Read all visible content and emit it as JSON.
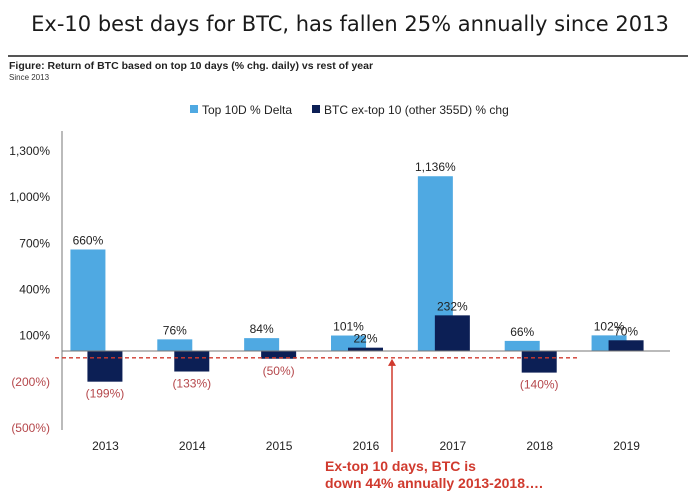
{
  "header": {
    "title": "Ex-10 best days for BTC, has fallen 25% annually since 2013",
    "figure_caption": "Figure: Return of BTC based on top 10 days (% chg. daily) vs rest of year",
    "subcaption": "Since 2013"
  },
  "chart_data": {
    "type": "bar",
    "categories": [
      "2013",
      "2014",
      "2015",
      "2016",
      "2017",
      "2018",
      "2019"
    ],
    "series": [
      {
        "name": "Top 10D % Delta",
        "color": "#4fa9e2",
        "values": [
          660,
          76,
          84,
          101,
          1136,
          66,
          102
        ],
        "labels": [
          "660%",
          "76%",
          "84%",
          "101%",
          "1,136%",
          "66%",
          "102%"
        ]
      },
      {
        "name": "BTC ex-top 10 (other 355D) % chg",
        "color": "#0c1f55",
        "values": [
          -199,
          -133,
          -50,
          22,
          232,
          -140,
          70
        ],
        "labels": [
          "(199%)",
          "(133%)",
          "(50%)",
          "22%",
          "232%",
          "(140%)",
          "70%"
        ]
      }
    ],
    "ylim": [
      -500,
      1300
    ],
    "yticks": [
      1300,
      1000,
      700,
      400,
      100,
      -200,
      -500
    ],
    "ytick_labels": [
      "1,300%",
      "1,000%",
      "700%",
      "400%",
      "100%",
      "(200%)",
      "(500%)"
    ],
    "negative_label_color": "#b5474b",
    "legend_position": "top-center",
    "reference_line": {
      "value": -44,
      "style": "dashed",
      "color": "#d03a2e"
    },
    "annotation": {
      "line1": "Ex-top 10 days, BTC is",
      "line2": "down 44% annually 2013-2018…."
    }
  }
}
